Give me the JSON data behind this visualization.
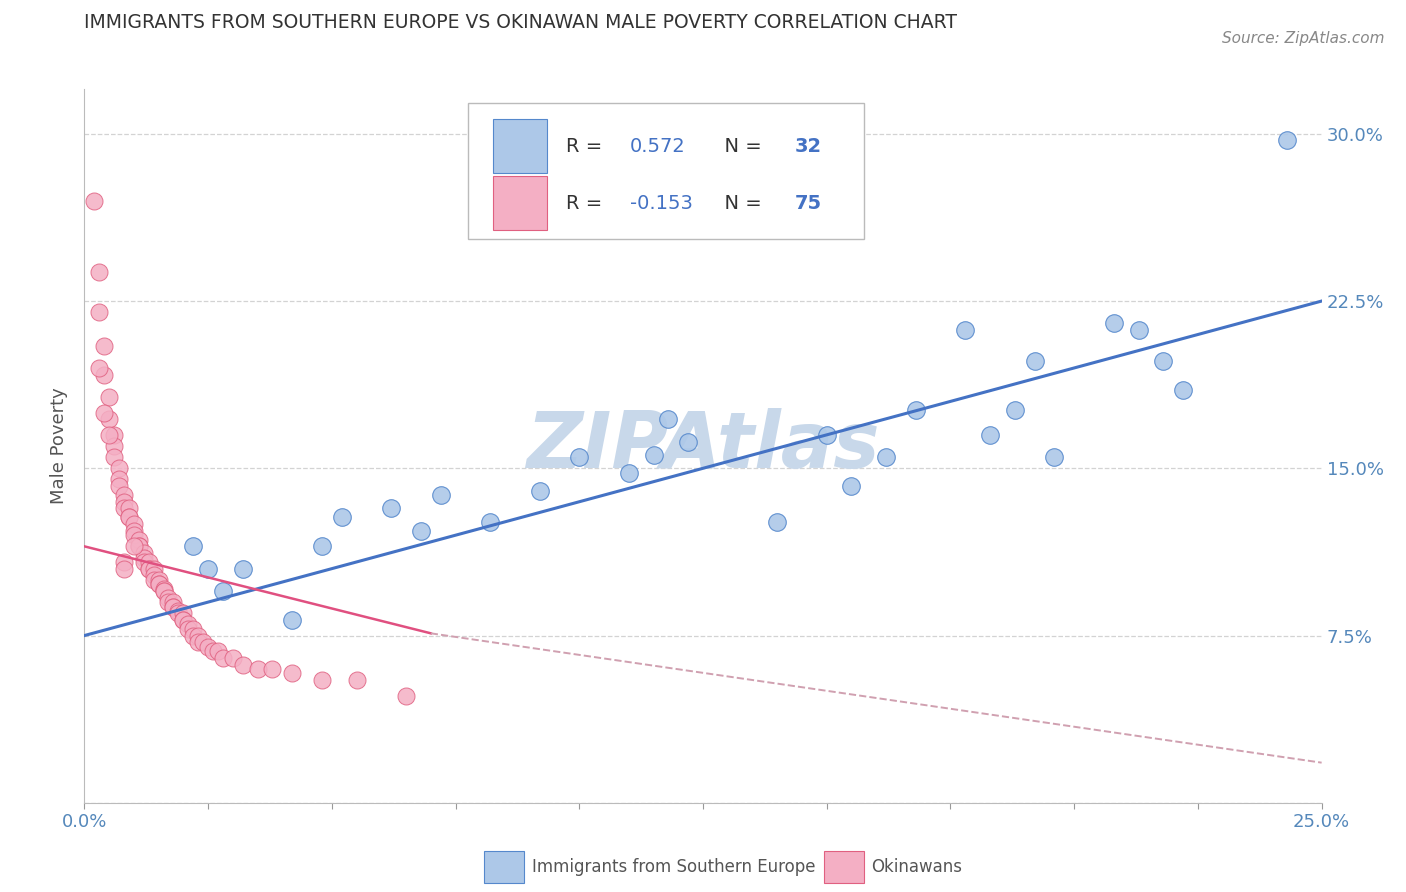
{
  "title": "IMMIGRANTS FROM SOUTHERN EUROPE VS OKINAWAN MALE POVERTY CORRELATION CHART",
  "source_text": "Source: ZipAtlas.com",
  "ylabel": "Male Poverty",
  "xlim": [
    0.0,
    0.25
  ],
  "ylim": [
    0.0,
    0.32
  ],
  "xticks": [
    0.0,
    0.025,
    0.05,
    0.075,
    0.1,
    0.125,
    0.15,
    0.175,
    0.2,
    0.225,
    0.25
  ],
  "yticks": [
    0.0,
    0.075,
    0.15,
    0.225,
    0.3
  ],
  "blue_color": "#adc8e8",
  "blue_edge_color": "#5588cc",
  "pink_color": "#f4afc4",
  "pink_edge_color": "#e06080",
  "blue_line_color": "#4472c4",
  "pink_line_color": "#e05080",
  "pink_dash_color": "#d0a0b0",
  "watermark_color": "#c8d8ea",
  "title_color": "#333333",
  "axis_label_color": "#555555",
  "tick_color": "#5588bb",
  "legend_text_color": "#333333",
  "legend_blue_num_color": "#4472c4",
  "blue_scatter": [
    [
      0.022,
      0.115
    ],
    [
      0.025,
      0.105
    ],
    [
      0.028,
      0.095
    ],
    [
      0.032,
      0.105
    ],
    [
      0.042,
      0.082
    ],
    [
      0.048,
      0.115
    ],
    [
      0.052,
      0.128
    ],
    [
      0.062,
      0.132
    ],
    [
      0.068,
      0.122
    ],
    [
      0.072,
      0.138
    ],
    [
      0.082,
      0.126
    ],
    [
      0.092,
      0.14
    ],
    [
      0.1,
      0.155
    ],
    [
      0.11,
      0.148
    ],
    [
      0.115,
      0.156
    ],
    [
      0.118,
      0.172
    ],
    [
      0.122,
      0.162
    ],
    [
      0.14,
      0.126
    ],
    [
      0.15,
      0.165
    ],
    [
      0.155,
      0.142
    ],
    [
      0.162,
      0.155
    ],
    [
      0.168,
      0.176
    ],
    [
      0.178,
      0.212
    ],
    [
      0.183,
      0.165
    ],
    [
      0.188,
      0.176
    ],
    [
      0.192,
      0.198
    ],
    [
      0.196,
      0.155
    ],
    [
      0.208,
      0.215
    ],
    [
      0.213,
      0.212
    ],
    [
      0.218,
      0.198
    ],
    [
      0.222,
      0.185
    ],
    [
      0.243,
      0.297
    ]
  ],
  "pink_scatter": [
    [
      0.002,
      0.27
    ],
    [
      0.003,
      0.238
    ],
    [
      0.003,
      0.22
    ],
    [
      0.004,
      0.205
    ],
    [
      0.004,
      0.192
    ],
    [
      0.005,
      0.182
    ],
    [
      0.005,
      0.172
    ],
    [
      0.006,
      0.165
    ],
    [
      0.006,
      0.16
    ],
    [
      0.006,
      0.155
    ],
    [
      0.007,
      0.15
    ],
    [
      0.007,
      0.145
    ],
    [
      0.007,
      0.142
    ],
    [
      0.008,
      0.138
    ],
    [
      0.008,
      0.135
    ],
    [
      0.008,
      0.132
    ],
    [
      0.009,
      0.132
    ],
    [
      0.009,
      0.128
    ],
    [
      0.009,
      0.128
    ],
    [
      0.01,
      0.125
    ],
    [
      0.01,
      0.122
    ],
    [
      0.01,
      0.12
    ],
    [
      0.011,
      0.118
    ],
    [
      0.011,
      0.115
    ],
    [
      0.011,
      0.115
    ],
    [
      0.012,
      0.112
    ],
    [
      0.012,
      0.11
    ],
    [
      0.012,
      0.108
    ],
    [
      0.013,
      0.108
    ],
    [
      0.013,
      0.105
    ],
    [
      0.013,
      0.105
    ],
    [
      0.014,
      0.105
    ],
    [
      0.014,
      0.102
    ],
    [
      0.014,
      0.1
    ],
    [
      0.015,
      0.1
    ],
    [
      0.015,
      0.098
    ],
    [
      0.015,
      0.098
    ],
    [
      0.016,
      0.096
    ],
    [
      0.016,
      0.095
    ],
    [
      0.016,
      0.095
    ],
    [
      0.017,
      0.092
    ],
    [
      0.017,
      0.09
    ],
    [
      0.018,
      0.09
    ],
    [
      0.018,
      0.088
    ],
    [
      0.018,
      0.088
    ],
    [
      0.019,
      0.086
    ],
    [
      0.019,
      0.085
    ],
    [
      0.02,
      0.085
    ],
    [
      0.02,
      0.082
    ],
    [
      0.02,
      0.082
    ],
    [
      0.021,
      0.08
    ],
    [
      0.021,
      0.078
    ],
    [
      0.022,
      0.078
    ],
    [
      0.022,
      0.075
    ],
    [
      0.023,
      0.075
    ],
    [
      0.023,
      0.072
    ],
    [
      0.024,
      0.072
    ],
    [
      0.025,
      0.07
    ],
    [
      0.026,
      0.068
    ],
    [
      0.027,
      0.068
    ],
    [
      0.028,
      0.065
    ],
    [
      0.03,
      0.065
    ],
    [
      0.032,
      0.062
    ],
    [
      0.035,
      0.06
    ],
    [
      0.038,
      0.06
    ],
    [
      0.042,
      0.058
    ],
    [
      0.048,
      0.055
    ],
    [
      0.055,
      0.055
    ],
    [
      0.065,
      0.048
    ],
    [
      0.008,
      0.108
    ],
    [
      0.008,
      0.105
    ],
    [
      0.01,
      0.115
    ],
    [
      0.003,
      0.195
    ],
    [
      0.004,
      0.175
    ],
    [
      0.005,
      0.165
    ]
  ],
  "blue_trendline": [
    [
      0.0,
      0.075
    ],
    [
      0.25,
      0.225
    ]
  ],
  "pink_trendline_solid": [
    [
      0.0,
      0.115
    ],
    [
      0.07,
      0.076
    ]
  ],
  "pink_trendline_dash": [
    [
      0.07,
      0.076
    ],
    [
      0.25,
      0.018
    ]
  ]
}
